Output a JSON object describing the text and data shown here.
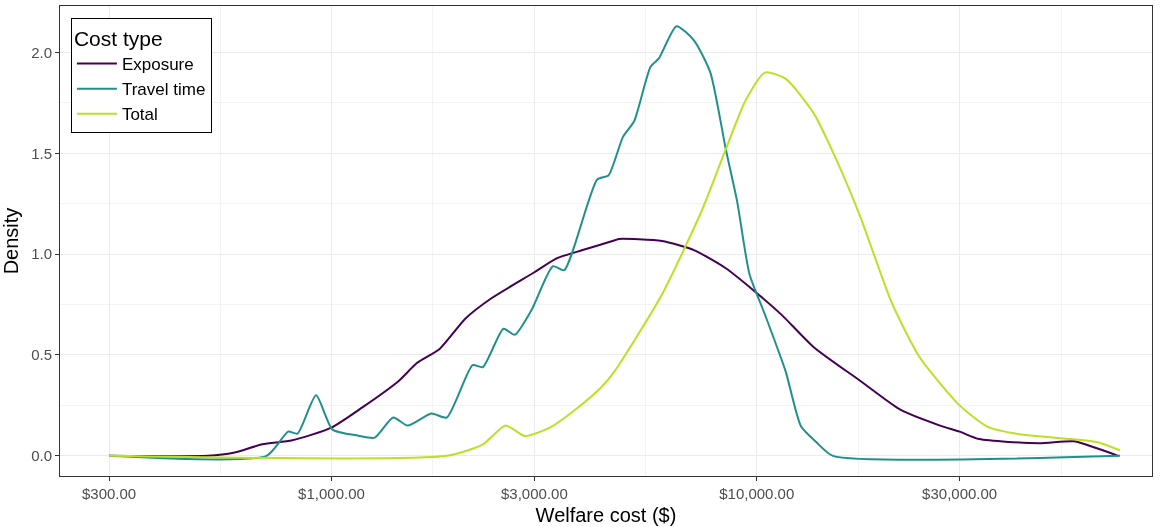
{
  "chart_data": {
    "type": "line",
    "xlabel": "Welfare cost ($)",
    "ylabel": "Density",
    "legend_title": "Cost type",
    "log": "x",
    "grid": true,
    "legend": "top left",
    "line_style": "solid",
    "marker": "none",
    "xlim": [
      230,
      85000
    ],
    "ylim": [
      -0.1,
      2.23
    ],
    "xticks": [
      {
        "value": 300,
        "label": "$300.00"
      },
      {
        "value": 1000,
        "label": "$1,000.00"
      },
      {
        "value": 3000,
        "label": "$3,000.00"
      },
      {
        "value": 10000,
        "label": "$10,000.00"
      },
      {
        "value": 30000,
        "label": "$30,000.00"
      }
    ],
    "yticks": [
      {
        "value": 0,
        "label": "0.0"
      },
      {
        "value": 0.5,
        "label": "0.5"
      },
      {
        "value": 1,
        "label": "1.0"
      },
      {
        "value": 1.5,
        "label": "1.5"
      },
      {
        "value": 2,
        "label": "2.0"
      }
    ],
    "series": [
      {
        "name": "Exposure",
        "color": "#440154",
        "x": [
          300,
          512,
          589,
          688,
          809,
          1000,
          1182,
          1437,
          1588,
          1796,
          2064,
          2373,
          3000,
          3392,
          3897,
          4660,
          4738,
          5987,
          7117,
          8458,
          9833,
          11429,
          13594,
          17560,
          21713,
          26977,
          30000,
          33340,
          46070,
          55710,
          63320,
          70780
        ],
        "values": [
          0,
          0,
          0.015,
          0.057,
          0.077,
          0.14,
          0.24,
          0.37,
          0.46,
          0.53,
          0.68,
          0.78,
          0.91,
          0.98,
          1.02,
          1.07,
          1.075,
          1.065,
          1.02,
          0.93,
          0.82,
          0.7,
          0.54,
          0.37,
          0.23,
          0.15,
          0.12,
          0.083,
          0.062,
          0.072,
          0.036,
          0
        ]
      },
      {
        "name": "Travel time",
        "color": "#21908c",
        "x": [
          300,
          704,
          791,
          832,
          920,
          1006,
          1156,
          1264,
          1397,
          1511,
          1718,
          1867,
          2147,
          2270,
          2538,
          2698,
          2950,
          3317,
          3526,
          4215,
          4480,
          4845,
          5151,
          5631,
          5888,
          6475,
          7117,
          7780,
          8458,
          8995,
          9617,
          10457,
          11689,
          12715,
          13822,
          15111,
          71500
        ],
        "values": [
          0,
          0,
          0.12,
          0.11,
          0.3,
          0.13,
          0.1,
          0.09,
          0.19,
          0.15,
          0.21,
          0.19,
          0.45,
          0.44,
          0.63,
          0.6,
          0.72,
          0.94,
          0.92,
          1.37,
          1.39,
          1.58,
          1.66,
          1.93,
          1.97,
          2.13,
          2.06,
          1.9,
          1.52,
          1.26,
          0.9,
          0.7,
          0.42,
          0.145,
          0.067,
          0,
          0
        ]
      },
      {
        "name": "Total",
        "color": "#bddf26",
        "x": [
          300,
          1867,
          2270,
          2567,
          2852,
          3262,
          3749,
          4310,
          4634,
          5987,
          7442,
          8458,
          9406,
          10457,
          11689,
          13594,
          15452,
          17560,
          20762,
          24133,
          30000,
          34860,
          41440,
          54790,
          63320,
          71500
        ],
        "values": [
          0,
          0,
          0.057,
          0.15,
          0.098,
          0.14,
          0.23,
          0.34,
          0.42,
          0.8,
          1.22,
          1.52,
          1.76,
          1.9,
          1.87,
          1.7,
          1.46,
          1.18,
          0.76,
          0.49,
          0.25,
          0.145,
          0.107,
          0.083,
          0.067,
          0.027
        ]
      }
    ]
  }
}
